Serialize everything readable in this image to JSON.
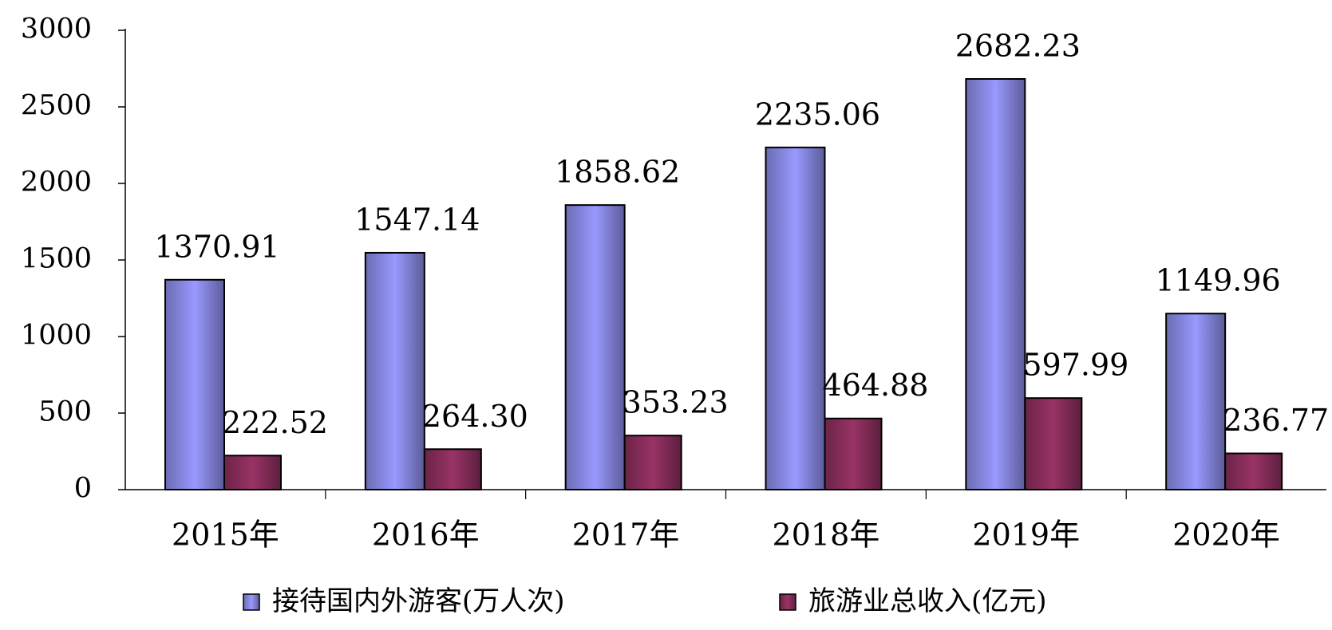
{
  "chart_data": {
    "type": "bar",
    "categories": [
      "2015年",
      "2016年",
      "2017年",
      "2018年",
      "2019年",
      "2020年"
    ],
    "series": [
      {
        "name": "接待国内外游客(万人次)",
        "color": "#9999ff",
        "values": [
          1370.91,
          1547.14,
          1858.62,
          2235.06,
          2682.23,
          1149.96
        ],
        "value_labels": [
          "1370.91",
          "1547.14",
          "1858.62",
          "2235.06",
          "2682.23",
          "1149.96"
        ]
      },
      {
        "name": "旅游业总收入(亿元)",
        "color": "#993366",
        "values": [
          222.52,
          264.3,
          353.23,
          464.88,
          597.99,
          236.77
        ],
        "value_labels": [
          "222.52",
          "264.30",
          "353.23",
          "464.88",
          "597.99",
          "236.77"
        ]
      }
    ],
    "ylim": [
      0,
      3000
    ],
    "yticks": [
      0,
      500,
      1000,
      1500,
      2000,
      2500,
      3000
    ],
    "grid": false,
    "legend": "bottom"
  }
}
